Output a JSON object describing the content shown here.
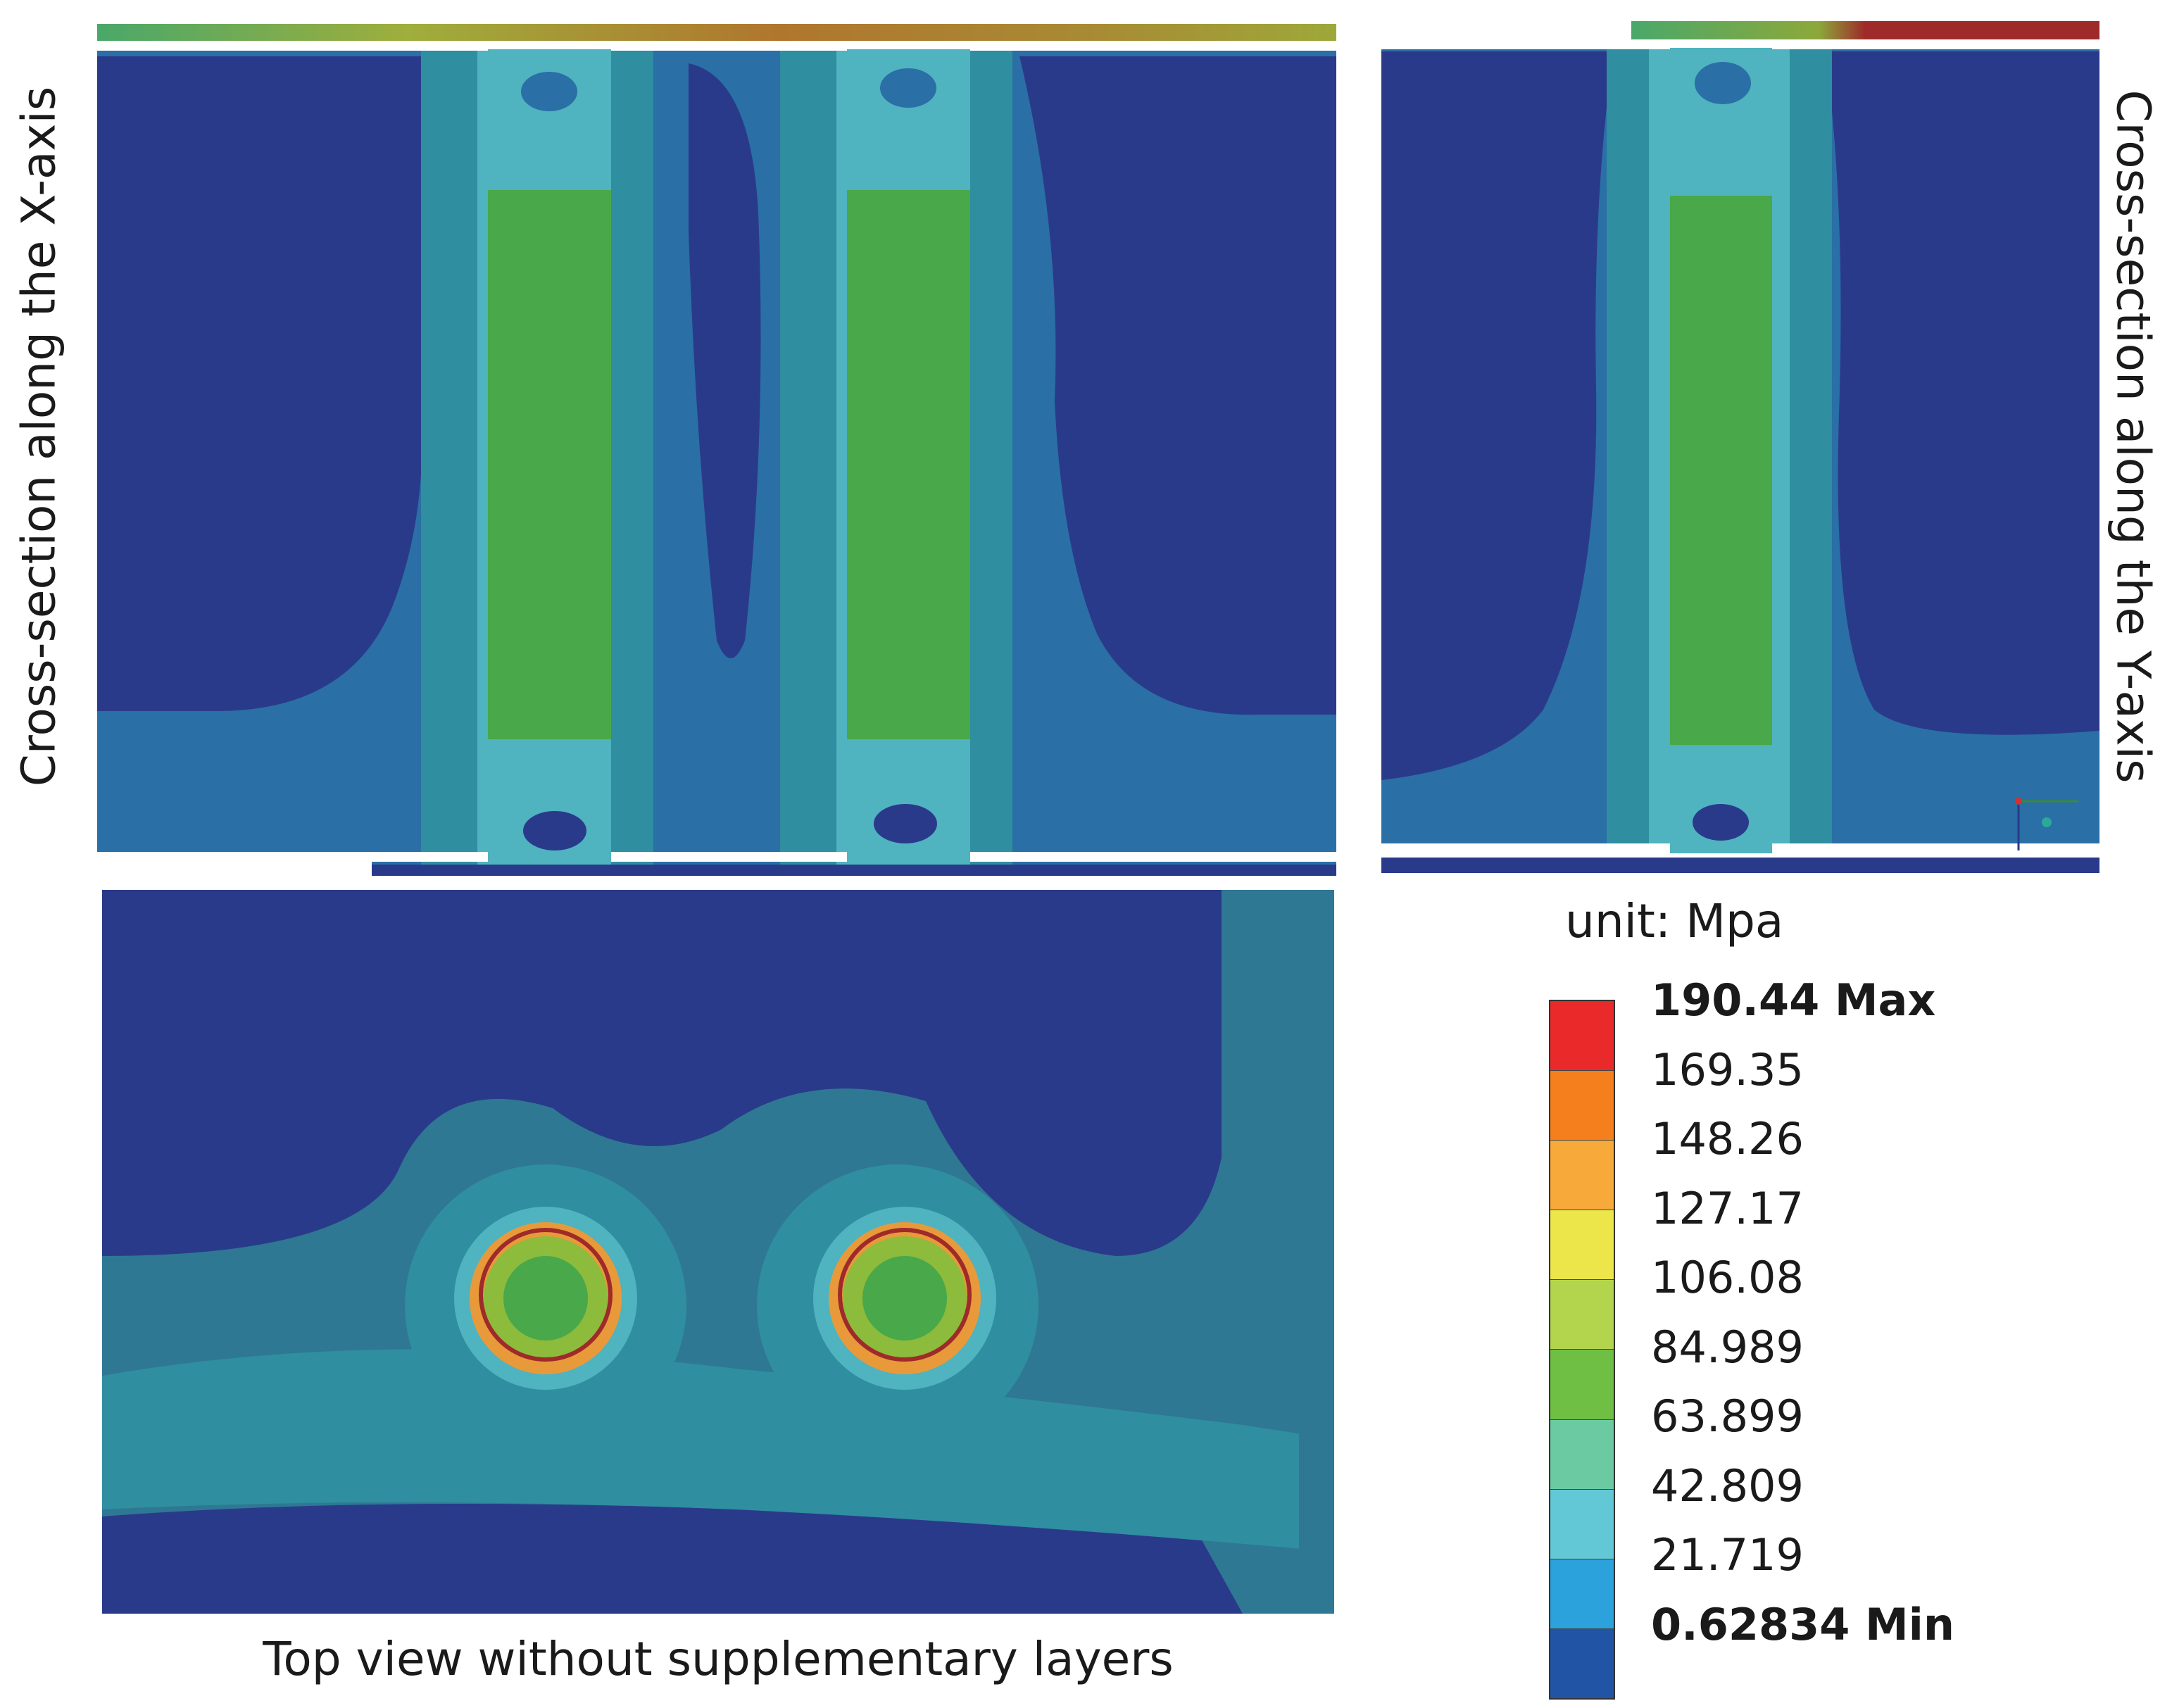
{
  "panels": {
    "x_section_label": "Cross-section along the X-axis",
    "y_section_label": "Cross-section along the Y-axis",
    "top_view_caption": "Top view without supplementary layers"
  },
  "legend": {
    "unit_label": "unit: Mpa",
    "bands": [
      {
        "label": "190.44 Max",
        "color": "#ea2a2a",
        "bold": true
      },
      {
        "label": "169.35",
        "color": "#f57f1c",
        "bold": false
      },
      {
        "label": "148.26",
        "color": "#f7a93a",
        "bold": false
      },
      {
        "label": "127.17",
        "color": "#ece64a",
        "bold": false
      },
      {
        "label": "106.08",
        "color": "#b3d44d",
        "bold": false
      },
      {
        "label": "84.989",
        "color": "#6fbf45",
        "bold": false
      },
      {
        "label": "63.899",
        "color": "#6ccaa3",
        "bold": false
      },
      {
        "label": "42.809",
        "color": "#62c8d6",
        "bold": false
      },
      {
        "label": "21.719",
        "color": "#2ca2dc",
        "bold": false
      },
      {
        "label": "0.62834 Min",
        "color": "#2154a5",
        "bold": true
      }
    ]
  },
  "palette": {
    "min_navy": "#2a3a8a",
    "low_blue": "#2a6fa6",
    "teal_mid": "#2f8ea0",
    "cyan": "#4fb3c0",
    "green": "#48a84a",
    "yellow_green": "#8dbb3c",
    "orange": "#e89a3a",
    "dark_red": "#9e2a2a",
    "top_teal": "#2e7893"
  }
}
